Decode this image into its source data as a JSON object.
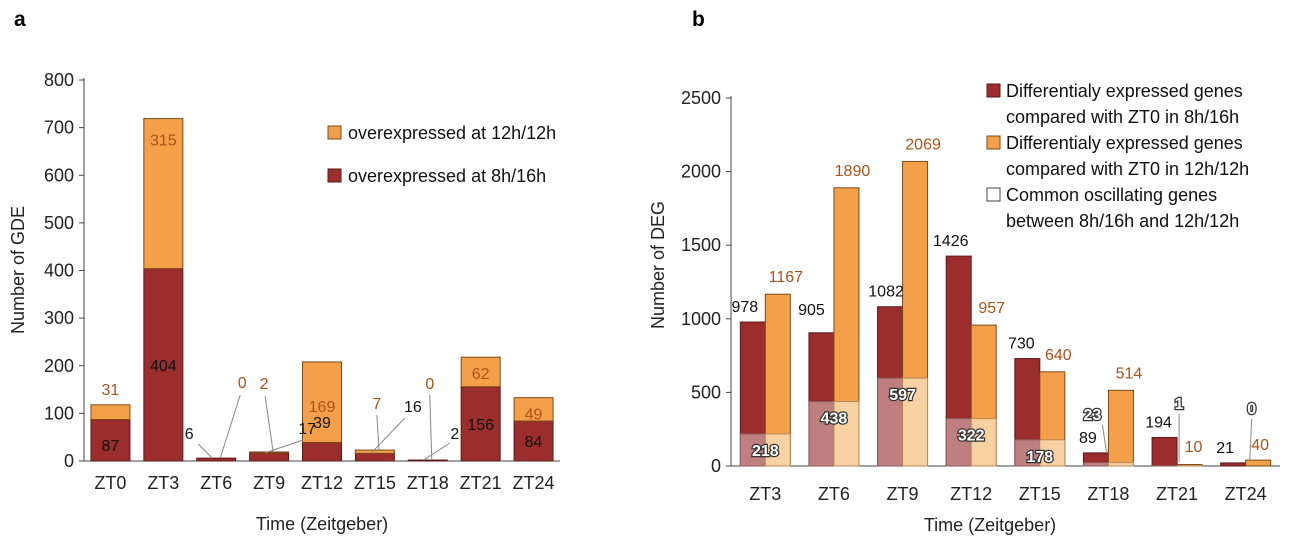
{
  "colors": {
    "dark": "#9B2D2D",
    "orange": "#F4A04A",
    "dark_label": "#1a1a1a",
    "orange_label": "#A9531A",
    "common_dark": "#C07F7F",
    "common_orange": "#F8D1A3"
  },
  "chart_data": [
    {
      "panel_label": "a",
      "type": "bar",
      "stacked": true,
      "categories": [
        "ZT0",
        "ZT3",
        "ZT6",
        "ZT9",
        "ZT12",
        "ZT15",
        "ZT18",
        "ZT21",
        "ZT24"
      ],
      "series": [
        {
          "name": "overexpressed at 8h/16h",
          "values": [
            87,
            404,
            6,
            17,
            39,
            16,
            2,
            156,
            84
          ]
        },
        {
          "name": "overexpressed at 12h/12h",
          "values": [
            31,
            315,
            0,
            2,
            169,
            7,
            0,
            62,
            49
          ]
        }
      ],
      "xlabel": "Time (Zeitgeber)",
      "ylabel": "Number of GDE",
      "ylim": [
        0,
        800
      ],
      "yticks": [
        "0",
        "100",
        "200",
        "300",
        "400",
        "500",
        "600",
        "700",
        "800"
      ],
      "legend": [
        "overexpressed at 12h/12h",
        "overexpressed at 8h/16h"
      ],
      "legend_position": "top-right",
      "grid": false
    },
    {
      "panel_label": "b",
      "type": "bar",
      "grouped": true,
      "categories": [
        "ZT3",
        "ZT6",
        "ZT9",
        "ZT12",
        "ZT15",
        "ZT18",
        "ZT21",
        "ZT24"
      ],
      "series": [
        {
          "name": "Differentialy expressed genes compared with ZT0 in 8h/16h",
          "values": [
            978,
            905,
            1082,
            1426,
            730,
            89,
            194,
            21
          ]
        },
        {
          "name": "Differentialy expressed genes compared with ZT0 in 12h/12h",
          "values": [
            1167,
            1890,
            2069,
            957,
            640,
            514,
            10,
            40
          ]
        },
        {
          "name": "Common oscillating genes between 8h/16h and 12h/12h",
          "values": [
            218,
            438,
            597,
            322,
            178,
            23,
            1,
            0
          ]
        }
      ],
      "xlabel": "Time (Zeitgeber)",
      "ylabel": "Number of DEG",
      "ylim": [
        0,
        2500
      ],
      "yticks": [
        "0",
        "500",
        "1000",
        "1500",
        "2000",
        "2500"
      ],
      "legend": [
        {
          "line1": "Differentialy expressed genes",
          "line2": "compared with ZT0 in 8h/16h"
        },
        {
          "line1": "Differentialy expressed genes",
          "line2": "compared with ZT0 in 12h/12h"
        },
        {
          "line1": "Common oscillating genes",
          "line2": "between 8h/16h and 12h/12h"
        }
      ],
      "legend_position": "top-right",
      "grid": false
    }
  ]
}
